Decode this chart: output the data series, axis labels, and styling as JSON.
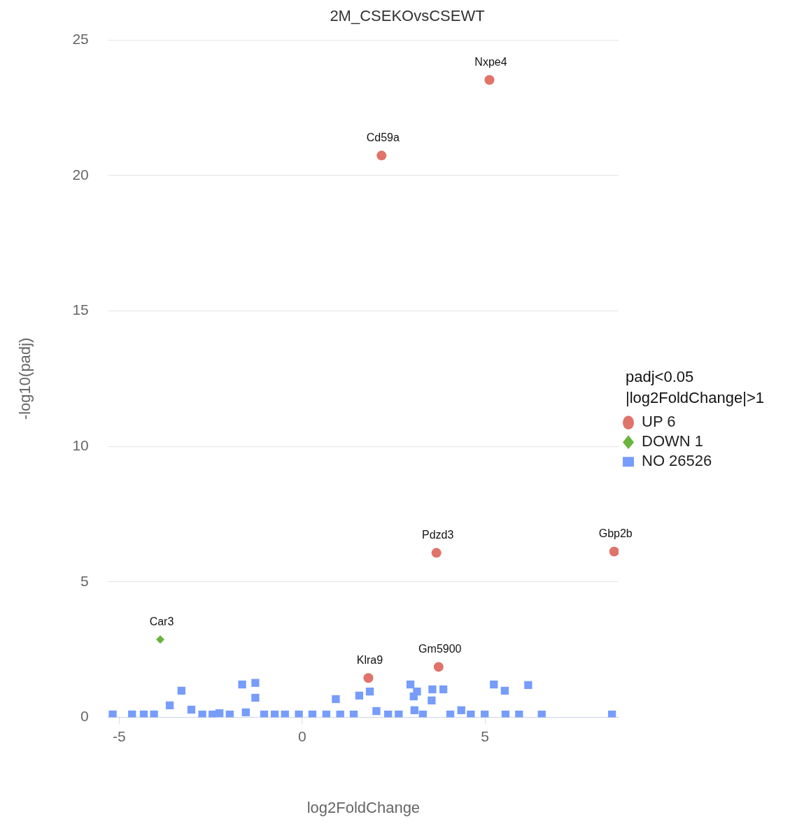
{
  "chart_data": {
    "type": "scatter",
    "title": "2M_CSEKOvsCSEWT",
    "xlabel": "log2FoldChange",
    "ylabel": "-log10(padj)",
    "legend_title": "padj<0.05\n|log2FoldChange|>1",
    "legend": "right",
    "grid": "y",
    "xlim": [
      -5.3,
      8.65
    ],
    "xticks": [
      -5,
      0,
      5
    ],
    "ylim": [
      0,
      25
    ],
    "yticks": [
      0,
      5,
      10,
      15,
      20,
      25
    ],
    "series": [
      {
        "name": "UP 6",
        "color": "#e0736a",
        "marker": "circle",
        "x": [
          5.12,
          2.17,
          3.67,
          8.53,
          1.81,
          3.73
        ],
        "values": [
          23.53,
          20.74,
          6.07,
          6.12,
          1.45,
          1.86
        ]
      },
      {
        "name": "DOWN 1",
        "color": "#6ab43e",
        "marker": "diamond",
        "x": [
          -3.88
        ],
        "values": [
          2.87
        ]
      },
      {
        "name": "NO 26526",
        "color": "#779dfb",
        "marker": "square",
        "x": [
          -3.3,
          -3.62,
          -3.03,
          -1.64,
          -1.28,
          -1.28,
          0.92,
          1.56,
          1.85,
          2.96,
          3.05,
          3.14,
          3.54,
          3.56,
          3.86,
          5.24,
          5.54,
          6.18,
          4.35,
          2.03,
          3.07,
          -1.54,
          -2.26,
          -5.18,
          -4.65,
          -4.33,
          -4.05,
          -2.73,
          -2.45,
          -1.98,
          -1.04,
          -0.75,
          -0.47,
          -0.09,
          0.28,
          0.66,
          1.04,
          1.41,
          2.35,
          2.64,
          3.3,
          4.05,
          4.61,
          4.99,
          5.56,
          5.93,
          6.55,
          8.47
        ],
        "values": [
          0.98,
          0.44,
          0.28,
          1.21,
          1.27,
          0.72,
          0.67,
          0.8,
          0.95,
          1.21,
          0.77,
          0.95,
          0.62,
          1.03,
          1.03,
          1.21,
          0.98,
          1.19,
          0.26,
          0.23,
          0.26,
          0.18,
          0.15,
          0.1,
          0.1,
          0.1,
          0.1,
          0.1,
          0.1,
          0.1,
          0.1,
          0.1,
          0.1,
          0.1,
          0.1,
          0.1,
          0.1,
          0.1,
          0.1,
          0.1,
          0.1,
          0.1,
          0.1,
          0.1,
          0.1,
          0.1,
          0.1,
          0.1
        ]
      }
    ],
    "annotations": [
      {
        "text": "Nxpe4",
        "x": 5.12,
        "y": 23.53
      },
      {
        "text": "Cd59a",
        "x": 2.17,
        "y": 20.74
      },
      {
        "text": "Pdzd3",
        "x": 3.67,
        "y": 6.07
      },
      {
        "text": "Gbp2b",
        "x": 8.53,
        "y": 6.12
      },
      {
        "text": "Klra9",
        "x": 1.81,
        "y": 1.45
      },
      {
        "text": "Gm5900",
        "x": 3.73,
        "y": 1.86
      },
      {
        "text": "Car3",
        "x": -3.88,
        "y": 2.87
      }
    ]
  }
}
